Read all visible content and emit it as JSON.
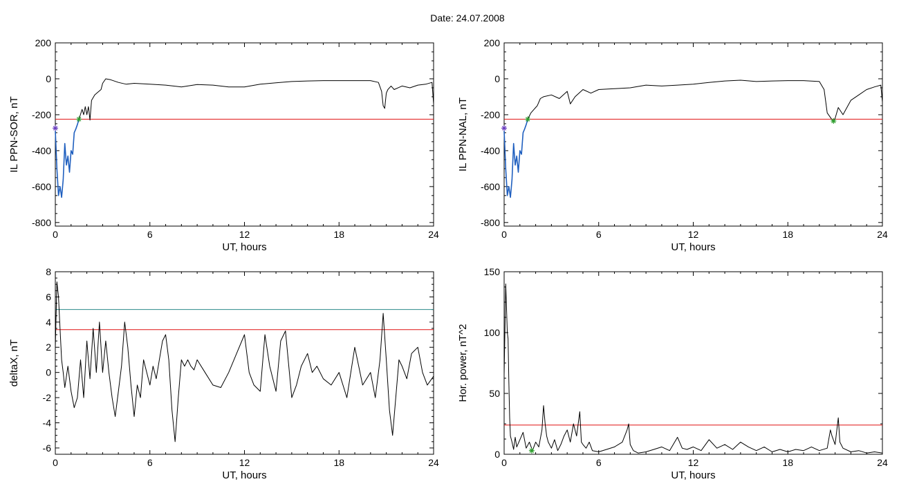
{
  "figure": {
    "title": "Date:  24.07.2008"
  },
  "chart_data": [
    {
      "type": "line",
      "title": "",
      "xlabel": "UT, hours",
      "ylabel": "IL PPN-SOR, nT",
      "xlim": [
        0,
        24
      ],
      "ylim": [
        -820,
        200
      ],
      "xticks": [
        0,
        6,
        12,
        18,
        24
      ],
      "yticks": [
        -800,
        -600,
        -400,
        -200,
        0,
        200
      ],
      "grid": false,
      "threshold": -225,
      "series": [
        {
          "color": "#1f5fbf",
          "x": [
            0,
            0.1,
            0.2,
            0.3,
            0.4,
            0.5,
            0.6,
            0.7,
            0.8,
            0.9,
            1.0,
            1.1,
            1.2,
            1.3,
            1.4,
            1.5
          ],
          "y": [
            -290,
            -500,
            -650,
            -600,
            -660,
            -560,
            -360,
            -480,
            -430,
            -520,
            -400,
            -420,
            -300,
            -280,
            -255,
            -225
          ]
        },
        {
          "color": "#000000",
          "x": [
            1.5,
            1.7,
            1.8,
            1.9,
            2.0,
            2.1,
            2.2,
            2.3,
            2.5,
            2.7,
            2.9,
            3.0,
            3.2,
            3.5,
            4.0,
            4.5,
            5.0,
            6.0,
            7.0,
            8.0,
            9.0,
            10.0,
            11.0,
            12.0,
            13.0,
            14.0,
            15.0,
            16.0,
            17.0,
            18.0,
            19.0,
            20.0,
            20.5,
            20.7,
            20.8,
            20.9,
            21.0,
            21.1,
            21.3,
            21.5,
            22.0,
            22.5,
            23.0,
            23.5,
            23.9,
            24.0
          ],
          "y": [
            -225,
            -170,
            -200,
            -155,
            -200,
            -155,
            -230,
            -120,
            -90,
            -75,
            -60,
            -25,
            0,
            -5,
            -20,
            -30,
            -25,
            -30,
            -35,
            -45,
            -32,
            -35,
            -45,
            -45,
            -30,
            -22,
            -15,
            -12,
            -10,
            -10,
            -10,
            -10,
            -20,
            -70,
            -150,
            -165,
            -80,
            -60,
            -40,
            -60,
            -40,
            -50,
            -35,
            -30,
            -20,
            -140
          ]
        }
      ],
      "markers": [
        {
          "x": 1.5,
          "y": -225,
          "color": "#2e9e2e"
        },
        {
          "x": 0,
          "y": -275,
          "color": "#6a3fbf"
        }
      ]
    },
    {
      "type": "line",
      "title": "",
      "xlabel": "UT, hours",
      "ylabel": "IL PPN-NAL, nT",
      "xlim": [
        0,
        24
      ],
      "ylim": [
        -820,
        200
      ],
      "xticks": [
        0,
        6,
        12,
        18,
        24
      ],
      "yticks": [
        -800,
        -600,
        -400,
        -200,
        0,
        200
      ],
      "grid": false,
      "threshold": -225,
      "series": [
        {
          "color": "#1f5fbf",
          "x": [
            0,
            0.1,
            0.2,
            0.3,
            0.4,
            0.5,
            0.6,
            0.7,
            0.8,
            0.9,
            1.0,
            1.1,
            1.2,
            1.3,
            1.4,
            1.5
          ],
          "y": [
            -290,
            -500,
            -650,
            -600,
            -660,
            -560,
            -360,
            -480,
            -430,
            -520,
            -400,
            -420,
            -300,
            -280,
            -255,
            -225
          ]
        },
        {
          "color": "#000000",
          "x": [
            1.5,
            1.7,
            1.9,
            2.0,
            2.1,
            2.3,
            2.5,
            3.0,
            3.5,
            4.0,
            4.2,
            4.5,
            5.0,
            5.5,
            6.0,
            7.0,
            8.0,
            9.0,
            10.0,
            11.0,
            12.0,
            13.0,
            14.0,
            15.0,
            16.0,
            17.0,
            18.0,
            19.0,
            20.0,
            20.3,
            20.5,
            20.7,
            20.9,
            21.0,
            21.2,
            21.5,
            22.0,
            22.5,
            23.0,
            23.5,
            23.9,
            24.0
          ],
          "y": [
            -225,
            -190,
            -170,
            -160,
            -150,
            -110,
            -100,
            -90,
            -110,
            -70,
            -140,
            -100,
            -60,
            -80,
            -60,
            -55,
            -50,
            -35,
            -40,
            -35,
            -30,
            -20,
            -12,
            -8,
            -15,
            -12,
            -10,
            -10,
            -15,
            -60,
            -190,
            -215,
            -240,
            -220,
            -160,
            -200,
            -120,
            -90,
            -60,
            -45,
            -35,
            -130
          ]
        }
      ],
      "markers": [
        {
          "x": 1.5,
          "y": -225,
          "color": "#2e9e2e"
        },
        {
          "x": 20.9,
          "y": -235,
          "color": "#2e9e2e"
        },
        {
          "x": 0,
          "y": -275,
          "color": "#6a3fbf"
        }
      ]
    },
    {
      "type": "line",
      "title": "",
      "xlabel": "UT, hours",
      "ylabel": "deltaX, nT",
      "xlim": [
        0,
        24
      ],
      "ylim": [
        -6.5,
        8
      ],
      "xticks": [
        0,
        6,
        12,
        18,
        24
      ],
      "yticks": [
        -6,
        -4,
        -2,
        0,
        2,
        4,
        6,
        8
      ],
      "grid": false,
      "thresholds": [
        {
          "y": 5.0,
          "color": "#2a8a8a"
        },
        {
          "y": 3.4,
          "color": "#e01010"
        }
      ],
      "series": [
        {
          "color": "#000000",
          "x": [
            0,
            0.1,
            0.2,
            0.3,
            0.4,
            0.5,
            0.6,
            0.8,
            1.0,
            1.2,
            1.4,
            1.6,
            1.8,
            2.0,
            2.2,
            2.4,
            2.6,
            2.8,
            3.0,
            3.2,
            3.4,
            3.6,
            3.8,
            4.0,
            4.2,
            4.4,
            4.6,
            4.8,
            5.0,
            5.2,
            5.4,
            5.6,
            5.8,
            6.0,
            6.2,
            6.4,
            6.6,
            6.8,
            7.0,
            7.2,
            7.4,
            7.6,
            7.8,
            8.0,
            8.2,
            8.4,
            8.6,
            8.8,
            9.0,
            9.5,
            10.0,
            10.5,
            11.0,
            11.5,
            12.0,
            12.3,
            12.6,
            13.0,
            13.3,
            13.6,
            14.0,
            14.3,
            14.6,
            15.0,
            15.3,
            15.6,
            16.0,
            16.3,
            16.6,
            17.0,
            17.5,
            18.0,
            18.5,
            19.0,
            19.5,
            20.0,
            20.3,
            20.6,
            20.8,
            21.0,
            21.2,
            21.4,
            21.6,
            21.8,
            22.0,
            22.3,
            22.6,
            23.0,
            23.3,
            23.6,
            24.0
          ],
          "y": [
            2,
            7.2,
            6,
            3.5,
            1,
            0,
            -1.2,
            0.5,
            -1.5,
            -2.8,
            -2,
            1,
            -2,
            2.5,
            -0.5,
            3.5,
            0,
            4,
            0,
            2.5,
            0,
            -2,
            -3.5,
            -1.5,
            0.5,
            4,
            2,
            -1,
            -3.5,
            -1,
            -2,
            1,
            0,
            -1,
            0.5,
            -0.5,
            1,
            2.5,
            3,
            1,
            -3,
            -5.5,
            -2,
            1,
            0.5,
            1,
            0.5,
            0.2,
            1,
            0,
            -1,
            -1.2,
            0,
            1.5,
            3,
            0,
            -1,
            -1.5,
            3,
            0.5,
            -1.5,
            2.5,
            3.3,
            -2,
            -1,
            0.5,
            1.5,
            0,
            0.5,
            -0.5,
            -1,
            0,
            -2,
            2,
            -1,
            0,
            -2,
            1,
            4.7,
            1,
            -3,
            -5,
            -2,
            1,
            0.5,
            -0.5,
            1.5,
            2,
            0,
            -1,
            -0.3
          ]
        }
      ]
    },
    {
      "type": "line",
      "title": "",
      "xlabel": "UT, hours",
      "ylabel": "Hor. power, nT^2",
      "xlim": [
        0,
        24
      ],
      "ylim": [
        0,
        150
      ],
      "xticks": [
        0,
        6,
        12,
        18,
        24
      ],
      "yticks": [
        0,
        50,
        100,
        150
      ],
      "grid": false,
      "threshold": 24,
      "series": [
        {
          "color": "#000000",
          "x": [
            0,
            0.1,
            0.2,
            0.25,
            0.3,
            0.35,
            0.4,
            0.5,
            0.6,
            0.7,
            0.8,
            1.0,
            1.2,
            1.4,
            1.6,
            1.8,
            2.0,
            2.2,
            2.4,
            2.5,
            2.6,
            2.7,
            2.8,
            3.0,
            3.2,
            3.4,
            3.6,
            3.8,
            4.0,
            4.2,
            4.4,
            4.6,
            4.8,
            4.9,
            5.0,
            5.2,
            5.4,
            5.6,
            6.0,
            6.5,
            7.0,
            7.5,
            7.8,
            7.9,
            8.0,
            8.2,
            8.5,
            9.0,
            9.5,
            10.0,
            10.5,
            11.0,
            11.3,
            11.6,
            12.0,
            12.5,
            13.0,
            13.5,
            14.0,
            14.5,
            15.0,
            15.5,
            16.0,
            16.5,
            17.0,
            17.5,
            18.0,
            18.5,
            19.0,
            19.5,
            20.0,
            20.5,
            20.7,
            20.8,
            21.0,
            21.2,
            21.3,
            21.5,
            22.0,
            22.5,
            23.0,
            23.5,
            24.0
          ],
          "y": [
            65,
            140,
            100,
            95,
            60,
            30,
            15,
            10,
            4,
            14,
            6,
            12,
            18,
            5,
            10,
            3,
            10,
            6,
            20,
            40,
            25,
            15,
            10,
            5,
            12,
            3,
            8,
            15,
            20,
            10,
            25,
            15,
            35,
            10,
            8,
            5,
            10,
            3,
            2,
            4,
            6,
            10,
            20,
            25,
            8,
            3,
            1,
            2,
            4,
            6,
            3,
            14,
            5,
            4,
            6,
            3,
            12,
            5,
            8,
            4,
            10,
            6,
            3,
            6,
            2,
            4,
            2,
            4,
            3,
            6,
            3,
            5,
            20,
            15,
            8,
            30,
            10,
            5,
            2,
            3,
            1,
            2,
            1
          ]
        }
      ],
      "markers": [
        {
          "x": 1.75,
          "y": 3,
          "color": "#2e9e2e"
        }
      ]
    }
  ]
}
